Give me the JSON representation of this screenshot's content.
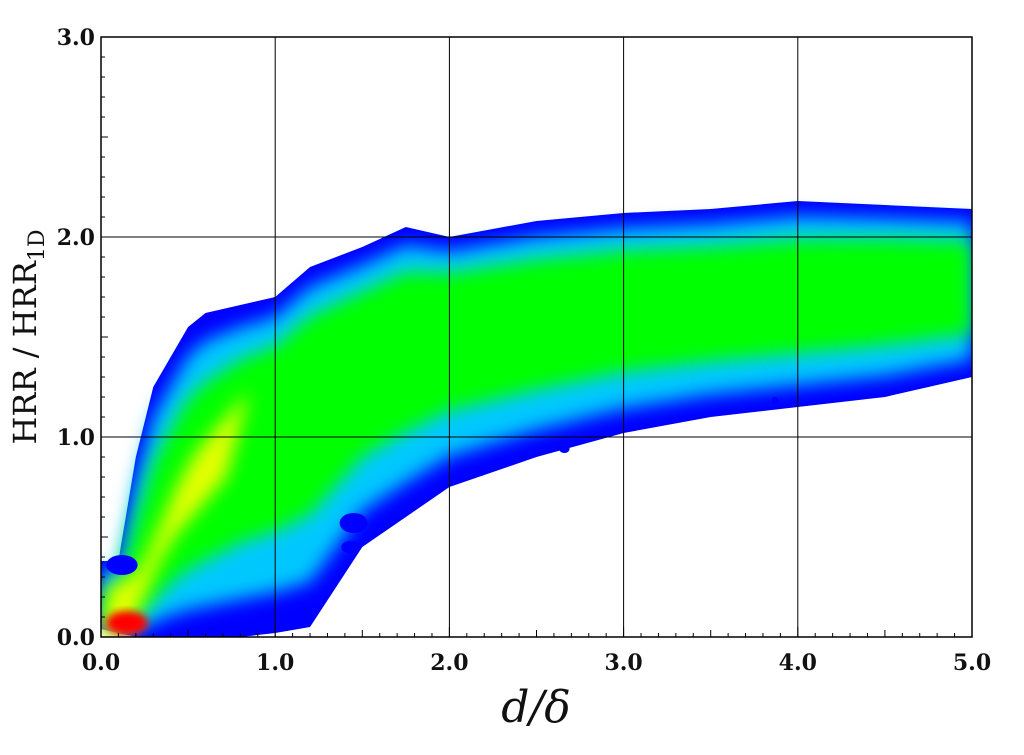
{
  "chart_data": {
    "type": "heatmap",
    "title": "",
    "xlabel": "d/δ",
    "ylabel": "HRR / HRR1D",
    "ylabel_main": "HRR / HRR",
    "ylabel_sub": "1D",
    "xlim": [
      0.0,
      5.0
    ],
    "ylim": [
      0.0,
      3.0
    ],
    "x_ticks": [
      "0.0",
      "1.0",
      "2.0",
      "3.0",
      "4.0",
      "5.0"
    ],
    "y_ticks": [
      "0.0",
      "1.0",
      "2.0",
      "3.0"
    ],
    "grid": true,
    "colormap": [
      "#0000ff",
      "#00c8ff",
      "#00ff00",
      "#ffff00",
      "#ff0000"
    ],
    "band": {
      "x": [
        0.0,
        0.1,
        0.2,
        0.3,
        0.4,
        0.5,
        0.6,
        0.7,
        0.8,
        1.0,
        1.2,
        1.5,
        1.75,
        2.0,
        2.5,
        3.0,
        3.5,
        4.0,
        4.5,
        5.0
      ],
      "upper": [
        0.38,
        0.38,
        0.9,
        1.25,
        1.4,
        1.55,
        1.62,
        1.64,
        1.66,
        1.7,
        1.85,
        1.95,
        2.05,
        2.0,
        2.08,
        2.12,
        2.14,
        2.18,
        2.16,
        2.14
      ],
      "lower": [
        0.04,
        0.02,
        0.0,
        0.0,
        0.0,
        0.0,
        0.0,
        0.0,
        0.0,
        0.02,
        0.05,
        0.45,
        0.6,
        0.75,
        0.9,
        1.02,
        1.1,
        1.15,
        1.2,
        1.3
      ]
    },
    "peak_ridge": {
      "x": [
        0.0,
        0.1,
        0.2,
        0.3,
        0.4,
        0.5,
        0.6,
        0.7,
        0.8,
        1.0,
        1.2,
        1.5,
        1.75,
        2.0,
        2.5,
        3.0,
        3.5,
        4.0,
        4.5,
        5.0
      ],
      "y": [
        0.08,
        0.1,
        0.2,
        0.4,
        0.6,
        0.75,
        0.85,
        0.95,
        1.05,
        1.15,
        1.3,
        1.45,
        1.55,
        1.6,
        1.65,
        1.7,
        1.72,
        1.75,
        1.78,
        1.78
      ]
    },
    "blobs": [
      {
        "x": 1.45,
        "y": 0.57,
        "rx": 0.08,
        "ry": 0.05
      },
      {
        "x": 1.43,
        "y": 0.45,
        "rx": 0.05,
        "ry": 0.03
      },
      {
        "x": 1.6,
        "y": 0.55,
        "rx": 0.02,
        "ry": 0.02
      },
      {
        "x": 2.66,
        "y": 0.94,
        "rx": 0.03,
        "ry": 0.02
      },
      {
        "x": 3.87,
        "y": 1.18,
        "rx": 0.02,
        "ry": 0.02
      },
      {
        "x": 0.12,
        "y": 0.36,
        "rx": 0.09,
        "ry": 0.05
      }
    ]
  }
}
